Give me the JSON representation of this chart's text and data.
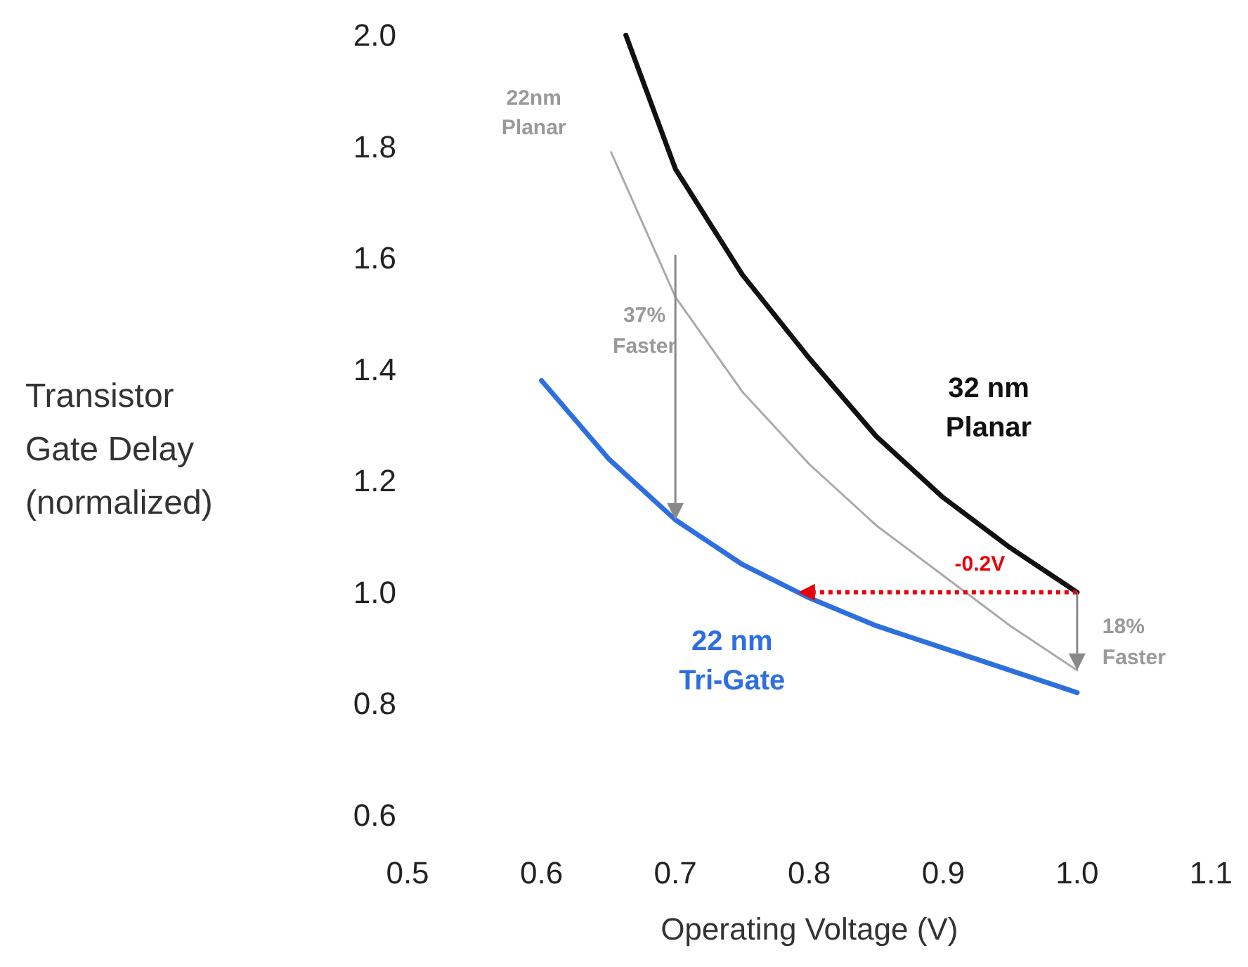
{
  "chart_data": {
    "type": "line",
    "xlabel": "Operating Voltage (V)",
    "ylabel": "Transistor Gate Delay (normalized)",
    "xlim": [
      0.5,
      1.1
    ],
    "xticks": [
      0.5,
      0.6,
      0.7,
      0.8,
      0.9,
      {
        "value": 1,
        "label": "1.0"
      },
      1.1
    ],
    "ylim": [
      0.6,
      2.0
    ],
    "yticks": [
      0.6,
      0.8,
      {
        "value": 1,
        "label": "1.0"
      },
      1.2,
      1.4,
      1.6,
      1.8,
      {
        "value": 2,
        "label": "2.0"
      }
    ],
    "grid": false,
    "legend": false,
    "marker": "none",
    "line_style": "solid",
    "series": [
      {
        "name": "32 nm\nPlanar",
        "color": "#111111",
        "x": [
          0.663,
          0.7,
          0.75,
          0.8,
          0.85,
          0.9,
          0.95,
          1.0
        ],
        "values": [
          2.0,
          1.76,
          1.57,
          1.42,
          1.28,
          1.17,
          1.08,
          1.0
        ]
      },
      {
        "name": "22nm\nPlanar",
        "color": "#aaaaaa",
        "x": [
          0.652,
          0.7,
          0.75,
          0.8,
          0.85,
          0.9,
          0.95,
          1.0
        ],
        "values": [
          1.79,
          1.53,
          1.36,
          1.23,
          1.12,
          1.03,
          0.94,
          0.86
        ]
      },
      {
        "name": "22 nm\nTri-Gate",
        "color": "#2e6fe0",
        "x": [
          0.6,
          0.65,
          0.7,
          0.75,
          0.8,
          0.85,
          0.9,
          0.95,
          1.0
        ],
        "values": [
          1.38,
          1.24,
          1.13,
          1.05,
          0.99,
          0.94,
          0.9,
          0.86,
          0.82
        ]
      }
    ],
    "annotations": [
      "37%\nFaster",
      {
        "text": "18%\nFaster",
        "x": 1.0,
        "y": 0.86
      },
      "-0.2V"
    ]
  }
}
